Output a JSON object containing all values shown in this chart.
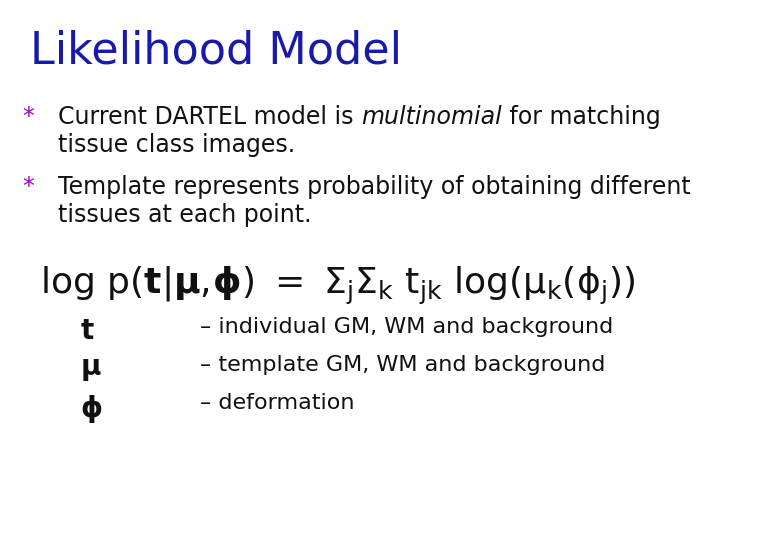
{
  "title": "Likelihood Model",
  "title_color": "#1a1aaa",
  "title_fontsize": 32,
  "background_color": "#FFFFFF",
  "bullet_color": "#aa00cc",
  "bullet_fontsize": 17,
  "equation_fontsize": 26,
  "desc_fontsize": 16,
  "text_color": "#111111",
  "sym_color": "#111111",
  "line1_normal": "Current DARTEL model is ",
  "line1_italic": "multinomial",
  "line1_rest": " for matching",
  "line1b": "tissue class images.",
  "line2a": "Template represents probability of obtaining different",
  "line2b": "tissues at each point.",
  "desc_t": "t",
  "desc_t_text": "– individual GM, WM and background",
  "desc_mu": "μ",
  "desc_mu_text": "– template GM, WM and background",
  "desc_phi": "φ",
  "desc_phi_text": "– deformation"
}
